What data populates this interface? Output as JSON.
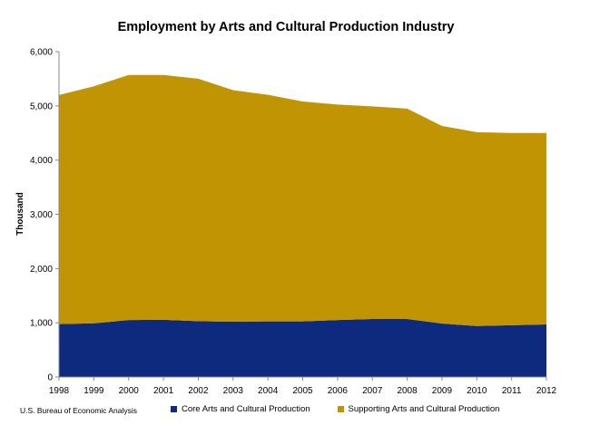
{
  "chart_data": {
    "type": "area",
    "stacked": true,
    "title": "Employment by Arts and Cultural Production Industry",
    "ylabel": "Thousand",
    "xlabel": "",
    "ylim": [
      0,
      6000
    ],
    "yticks": [
      "0",
      "1,000",
      "2,000",
      "3,000",
      "4,000",
      "5,000",
      "6,000"
    ],
    "ytick_values": [
      0,
      1000,
      2000,
      3000,
      4000,
      5000,
      6000
    ],
    "x": [
      "1998",
      "1999",
      "2000",
      "2001",
      "2002",
      "2003",
      "2004",
      "2005",
      "2006",
      "2007",
      "2008",
      "2009",
      "2010",
      "2011",
      "2012"
    ],
    "series": [
      {
        "name": "Core Arts and Cultural Production",
        "color": "#0d2a7f",
        "values": [
          975,
          990,
          1050,
          1055,
          1030,
          1020,
          1025,
          1025,
          1050,
          1070,
          1070,
          985,
          940,
          955,
          970
        ]
      },
      {
        "name": "Supporting Arts and Cultural Production",
        "color": "#c09402",
        "values": [
          4225,
          4370,
          4520,
          4515,
          4470,
          4270,
          4180,
          4055,
          3975,
          3920,
          3880,
          3645,
          3575,
          3545,
          3530
        ]
      }
    ],
    "legend_position": "bottom",
    "grid": false
  },
  "source_note": "U.S. Bureau of Economic Analysis"
}
